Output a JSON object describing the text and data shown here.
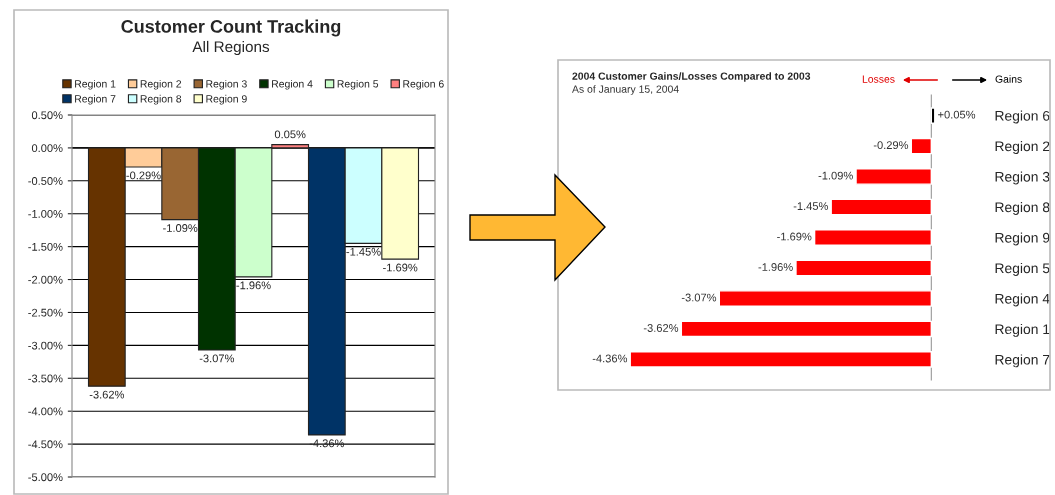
{
  "chart_data": [
    {
      "type": "bar",
      "title": "Customer Count Tracking",
      "subtitle": "All Regions",
      "categories": [
        null
      ],
      "series": [
        {
          "name": "Region 1",
          "color": "#663300",
          "values": [
            -3.62
          ],
          "value_labels": [
            "-3.62%"
          ]
        },
        {
          "name": "Region 2",
          "color": "#ffcc99",
          "values": [
            -0.29
          ],
          "value_labels": [
            "-0.29%"
          ]
        },
        {
          "name": "Region 3",
          "color": "#996633",
          "values": [
            -1.09
          ],
          "value_labels": [
            "-1.09%"
          ]
        },
        {
          "name": "Region 4",
          "color": "#003300",
          "values": [
            -3.07
          ],
          "value_labels": [
            "-3.07%"
          ]
        },
        {
          "name": "Region 5",
          "color": "#ccffcc",
          "values": [
            -1.96
          ],
          "value_labels": [
            "-1.96%"
          ]
        },
        {
          "name": "Region 6",
          "color": "#ff8080",
          "values": [
            0.05
          ],
          "value_labels": [
            "0.05%"
          ]
        },
        {
          "name": "Region 7",
          "color": "#003366",
          "values": [
            -4.36
          ],
          "value_labels": [
            "-4.36%"
          ]
        },
        {
          "name": "Region 8",
          "color": "#ccffff",
          "values": [
            -1.45
          ],
          "value_labels": [
            "-1.45%"
          ]
        },
        {
          "name": "Region 9",
          "color": "#ffffcc",
          "values": [
            -1.69
          ],
          "value_labels": [
            "-1.69%"
          ]
        }
      ],
      "ylim": [
        -5.0,
        0.5
      ],
      "yticks": [
        {
          "value": 0.5,
          "label": "0.50%"
        },
        {
          "value": 0.0,
          "label": "0.00%"
        },
        {
          "value": -0.5,
          "label": "-0.50%"
        },
        {
          "value": -1.0,
          "label": "-1.00%"
        },
        {
          "value": -1.5,
          "label": "-1.50%"
        },
        {
          "value": -2.0,
          "label": "-2.00%"
        },
        {
          "value": -2.5,
          "label": "-2.50%"
        },
        {
          "value": -3.0,
          "label": "-3.00%"
        },
        {
          "value": -3.5,
          "label": "-3.50%"
        },
        {
          "value": -4.0,
          "label": "-4.00%"
        },
        {
          "value": -4.5,
          "label": "-4.50%"
        },
        {
          "value": -5.0,
          "label": "-5.00%"
        }
      ],
      "grid": "y",
      "legend": "top",
      "tick_labels": "y"
    },
    {
      "type": "bar",
      "orientation": "horizontal",
      "title": "2004 Customer Gains/Losses Compared to 2003",
      "subtitle": "As of January 15, 2004",
      "categories": [
        "Region 6",
        "Region 2",
        "Region 3",
        "Region 8",
        "Region 9",
        "Region 5",
        "Region 4",
        "Region 1",
        "Region 7"
      ],
      "values": [
        0.05,
        -0.29,
        -1.09,
        -1.45,
        -1.69,
        -1.96,
        -3.07,
        -3.62,
        -4.36
      ],
      "value_labels": [
        "+0.05%",
        "-0.29%",
        "-1.09%",
        "-1.45%",
        "-1.69%",
        "-1.96%",
        "-3.07%",
        "-3.62%",
        "-4.36%"
      ],
      "colors": [
        "#000000",
        "#ff0000",
        "#ff0000",
        "#ff0000",
        "#ff0000",
        "#ff0000",
        "#ff0000",
        "#ff0000",
        "#ff0000"
      ],
      "annotations": [
        "Losses",
        "Gains"
      ],
      "tick_labels": "y"
    }
  ]
}
